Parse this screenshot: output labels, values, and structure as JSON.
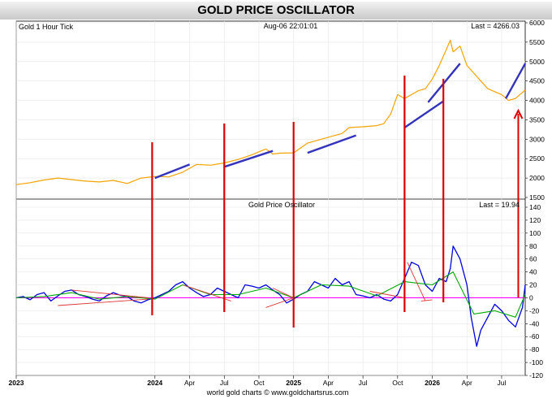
{
  "title": "GOLD PRICE OSCILLATOR",
  "footer": "world gold charts © www.goldchartsrus.com",
  "chart_data": [
    {
      "type": "line",
      "panel": "price",
      "title": "Gold 1 Hour Tick",
      "date_label": "Aug-06  22:01:01",
      "last_label": "Last = 4266.03",
      "ylim": [
        1500,
        6000
      ],
      "y_ticks": [
        "6000",
        "5500",
        "5000",
        "4500",
        "4000",
        "3500",
        "3000",
        "2500",
        "2000",
        "1500"
      ],
      "x_range": [
        2023.0,
        2026.67
      ],
      "x_tick_labels": [
        "2023",
        "2024",
        "Apr",
        "Jul",
        "Oct",
        "2025",
        "Apr",
        "Jul",
        "Oct",
        "2026",
        "Apr",
        "Jul"
      ],
      "x_tick_values": [
        2023.0,
        2024.0,
        2024.25,
        2024.5,
        2024.75,
        2025.0,
        2025.25,
        2025.5,
        2025.75,
        2026.0,
        2026.25,
        2026.5
      ],
      "series": [
        {
          "color": "#f5a300",
          "x": [
            2023.0,
            2023.1,
            2023.2,
            2023.3,
            2023.4,
            2023.5,
            2023.6,
            2023.7,
            2023.8,
            2023.9,
            2024.0,
            2024.1,
            2024.2,
            2024.3,
            2024.4,
            2024.5,
            2024.6,
            2024.7,
            2024.8,
            2024.85,
            2024.9,
            2025.0,
            2025.1,
            2025.2,
            2025.3,
            2025.35,
            2025.4,
            2025.5,
            2025.6,
            2025.65,
            2025.7,
            2025.75,
            2025.8,
            2025.9,
            2025.95,
            2026.0,
            2026.05,
            2026.1,
            2026.13,
            2026.15,
            2026.2,
            2026.25,
            2026.3,
            2026.35,
            2026.4,
            2026.5,
            2026.55,
            2026.6,
            2026.67
          ],
          "y": [
            1830,
            1880,
            1950,
            2000,
            1960,
            1920,
            1900,
            1940,
            1860,
            2000,
            2040,
            2030,
            2150,
            2350,
            2330,
            2390,
            2480,
            2600,
            2750,
            2620,
            2640,
            2650,
            2900,
            3000,
            3100,
            3150,
            3300,
            3320,
            3350,
            3400,
            3650,
            4150,
            4050,
            4250,
            4300,
            4550,
            4900,
            5300,
            5550,
            5250,
            5400,
            4900,
            4700,
            4500,
            4300,
            4150,
            4000,
            4050,
            4266
          ]
        }
      ],
      "trend_lines": [
        {
          "x": [
            2024.0,
            2024.25
          ],
          "y": [
            2000,
            2350
          ]
        },
        {
          "x": [
            2024.5,
            2024.85
          ],
          "y": [
            2290,
            2700
          ]
        },
        {
          "x": [
            2025.1,
            2025.45
          ],
          "y": [
            2650,
            3100
          ]
        },
        {
          "x": [
            2025.8,
            2026.08
          ],
          "y": [
            3300,
            3980
          ]
        },
        {
          "x": [
            2025.97,
            2026.2
          ],
          "y": [
            3950,
            4950
          ]
        },
        {
          "x": [
            2026.53,
            2026.67
          ],
          "y": [
            4050,
            4950
          ]
        }
      ]
    },
    {
      "type": "line",
      "panel": "oscillator",
      "title": "Gold Price Oscillator",
      "last_label": "Last = 19.94",
      "ylim": [
        -120,
        140
      ],
      "y_ticks": [
        "140",
        "120",
        "100",
        "80",
        "60",
        "40",
        "20",
        "0",
        "-20",
        "-40",
        "-60",
        "-80",
        "-100",
        "-120"
      ],
      "zero_line_color": "#ff00ff",
      "series": [
        {
          "color": "#0000dd",
          "x": [
            2023.0,
            2023.05,
            2023.1,
            2023.15,
            2023.2,
            2023.25,
            2023.3,
            2023.35,
            2023.4,
            2023.45,
            2023.5,
            2023.55,
            2023.6,
            2023.65,
            2023.7,
            2023.75,
            2023.8,
            2023.85,
            2023.9,
            2023.95,
            2024.0,
            2024.05,
            2024.1,
            2024.15,
            2024.2,
            2024.25,
            2024.3,
            2024.35,
            2024.4,
            2024.45,
            2024.5,
            2024.55,
            2024.6,
            2024.65,
            2024.7,
            2024.75,
            2024.8,
            2024.85,
            2024.9,
            2024.95,
            2025.0,
            2025.05,
            2025.1,
            2025.15,
            2025.2,
            2025.25,
            2025.3,
            2025.35,
            2025.4,
            2025.45,
            2025.5,
            2025.55,
            2025.6,
            2025.65,
            2025.7,
            2025.75,
            2025.8,
            2025.85,
            2025.9,
            2025.95,
            2026.0,
            2026.05,
            2026.1,
            2026.13,
            2026.15,
            2026.2,
            2026.25,
            2026.28,
            2026.32,
            2026.35,
            2026.4,
            2026.45,
            2026.5,
            2026.55,
            2026.6,
            2026.65,
            2026.67
          ],
          "y": [
            0,
            2,
            -3,
            5,
            8,
            -5,
            3,
            10,
            12,
            5,
            2,
            -2,
            -5,
            3,
            8,
            4,
            2,
            -5,
            -8,
            -3,
            0,
            5,
            10,
            20,
            25,
            15,
            8,
            2,
            5,
            15,
            10,
            5,
            0,
            20,
            18,
            15,
            20,
            12,
            5,
            -8,
            -2,
            5,
            10,
            25,
            20,
            15,
            30,
            20,
            25,
            5,
            3,
            0,
            5,
            -2,
            -5,
            5,
            30,
            55,
            50,
            20,
            10,
            30,
            25,
            45,
            80,
            60,
            20,
            -30,
            -75,
            -50,
            -30,
            -10,
            -20,
            -35,
            -45,
            -15,
            20
          ]
        },
        {
          "color": "#00aa00",
          "x": [
            2023.0,
            2023.2,
            2023.4,
            2023.6,
            2023.8,
            2024.0,
            2024.2,
            2024.4,
            2024.6,
            2024.8,
            2025.0,
            2025.2,
            2025.4,
            2025.6,
            2025.8,
            2026.0,
            2026.15,
            2026.3,
            2026.45,
            2026.6,
            2026.67
          ],
          "y": [
            0,
            2,
            8,
            -2,
            2,
            -2,
            20,
            5,
            5,
            15,
            0,
            20,
            18,
            3,
            25,
            20,
            40,
            -25,
            -20,
            -30,
            5
          ]
        }
      ],
      "divergence_lines": [
        {
          "x": [
            2023.3,
            2023.95
          ],
          "y": [
            -12,
            -2
          ]
        },
        {
          "x": [
            2023.4,
            2023.95
          ],
          "y": [
            12,
            0
          ]
        },
        {
          "x": [
            2024.2,
            2024.55
          ],
          "y": [
            20,
            -5
          ]
        },
        {
          "x": [
            2024.8,
            2025.0
          ],
          "y": [
            -15,
            0
          ]
        },
        {
          "x": [
            2024.85,
            2025.0
          ],
          "y": [
            15,
            0
          ]
        },
        {
          "x": [
            2025.55,
            2025.8
          ],
          "y": [
            10,
            0
          ]
        },
        {
          "x": [
            2025.82,
            2025.95
          ],
          "y": [
            55,
            -5
          ]
        },
        {
          "x": [
            2025.92,
            2026.0
          ],
          "y": [
            -5,
            -3
          ]
        }
      ]
    }
  ],
  "signal_lines": {
    "color": "#dd0000",
    "x": [
      2023.98,
      2024.5,
      2025.0,
      2025.8,
      2026.08
    ],
    "up_arrow_x": 2026.62
  }
}
